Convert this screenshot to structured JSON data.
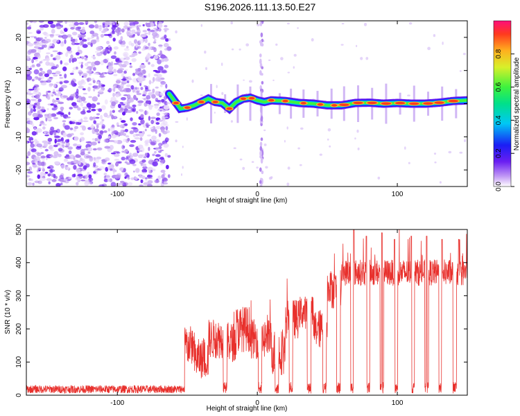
{
  "title": "S196.2026.111.13.50.E27",
  "chart_data": [
    {
      "type": "heatmap",
      "xlabel": "Height of straight line (km)",
      "ylabel": "Frequency (Hz)",
      "xlim": [
        -165,
        150
      ],
      "ylim": [
        -25,
        25
      ],
      "xticks": [
        -100,
        0,
        100
      ],
      "yticks": [
        -20,
        -10,
        0,
        10,
        20
      ],
      "xtick_labels": [
        "-100",
        "0",
        "100"
      ],
      "ytick_labels": [
        "-20",
        "-10",
        "0",
        "10",
        "20"
      ],
      "colorbar": {
        "label": "Normalized spectral amplitude",
        "range": [
          0,
          1
        ],
        "ticks": [
          0.0,
          0.2,
          0.4,
          0.6,
          0.8
        ],
        "tick_labels": [
          "0.0",
          "0.2",
          "0.4",
          "0.6",
          "0.8"
        ]
      },
      "noise_region_x": [
        -165,
        -63
      ],
      "signal_track": {
        "x": [
          -63,
          -55,
          -50,
          -45,
          -40,
          -35,
          -30,
          -25,
          -20,
          -15,
          -10,
          -5,
          0,
          5,
          10,
          20,
          30,
          40,
          50,
          60,
          70,
          80,
          90,
          100,
          110,
          120,
          130,
          140,
          150
        ],
        "freq": [
          3,
          -1.5,
          -1.2,
          -0.5,
          0.5,
          1.5,
          0.5,
          0.2,
          -1.5,
          0.5,
          1.5,
          1.8,
          1.0,
          0.5,
          1.0,
          0.8,
          0.2,
          0.0,
          -0.5,
          -0.5,
          0.2,
          0.3,
          0.0,
          0.2,
          0.0,
          0.0,
          0.3,
          0.8,
          1.0
        ]
      },
      "spike_x": [
        -33,
        -23,
        -14,
        -5,
        3,
        16,
        24,
        33,
        43,
        53,
        62,
        72,
        82,
        92,
        102,
        112,
        122,
        132,
        142
      ]
    },
    {
      "type": "line",
      "xlabel": "Height of straight line (km)",
      "ylabel": "SNR (10 * v/v)",
      "xlim": [
        -165,
        150
      ],
      "ylim": [
        0,
        500
      ],
      "xticks": [
        -100,
        0,
        100
      ],
      "yticks": [
        0,
        100,
        200,
        300,
        400,
        500
      ],
      "xtick_labels": [
        "-100",
        "0",
        "100"
      ],
      "ytick_labels": [
        "0",
        "100",
        "200",
        "300",
        "400",
        "500"
      ],
      "color": "#e8302c",
      "segments": [
        {
          "x": [
            -165,
            -52
          ],
          "baseline": 18,
          "noise": 12
        },
        {
          "x": [
            -52,
            -45
          ],
          "baseline": 150,
          "noise": 60
        },
        {
          "x": [
            -45,
            -35
          ],
          "baseline": 110,
          "noise": 60
        },
        {
          "x": [
            -35,
            -25
          ],
          "baseline": 170,
          "noise": 60
        },
        {
          "x": [
            -25,
            -15
          ],
          "baseline": 160,
          "noise": 60
        },
        {
          "x": [
            -15,
            -5
          ],
          "baseline": 200,
          "noise": 70
        },
        {
          "x": [
            -5,
            10
          ],
          "baseline": 170,
          "noise": 60
        },
        {
          "x": [
            10,
            20
          ],
          "baseline": 130,
          "noise": 70
        },
        {
          "x": [
            20,
            30
          ],
          "baseline": 230,
          "noise": 60
        },
        {
          "x": [
            30,
            40
          ],
          "baseline": 250,
          "noise": 50
        },
        {
          "x": [
            40,
            50
          ],
          "baseline": 200,
          "noise": 60
        },
        {
          "x": [
            50,
            60
          ],
          "baseline": 320,
          "noise": 60
        },
        {
          "x": [
            60,
            150
          ],
          "baseline": 370,
          "noise": 40
        }
      ],
      "dips_x": [
        -23,
        2,
        14,
        24,
        37,
        48,
        58,
        68,
        79,
        89,
        99,
        111,
        121,
        131,
        141
      ],
      "peak_values": [
        {
          "x": 69,
          "y": 500
        },
        {
          "x": 78,
          "y": 480
        },
        {
          "x": 89,
          "y": 490
        },
        {
          "x": 98,
          "y": 470
        },
        {
          "x": 110,
          "y": 480
        },
        {
          "x": 121,
          "y": 480
        },
        {
          "x": 132,
          "y": 470
        },
        {
          "x": 144,
          "y": 470
        }
      ]
    }
  ]
}
